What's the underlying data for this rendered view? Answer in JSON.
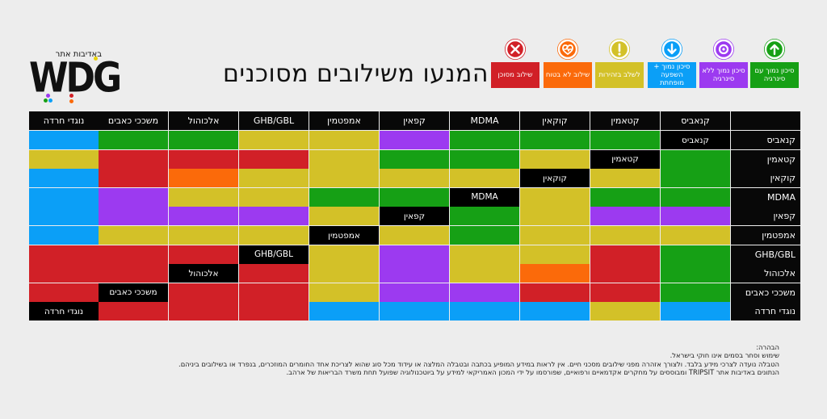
{
  "logo": {
    "subtitle": "באדיבות אתר",
    "wordmark": "WDG"
  },
  "title": "המנעו משילובים מסוכנים",
  "legend": [
    {
      "label": "שילוב מסוכן",
      "color": "#d12027",
      "icon": "x-circle-icon"
    },
    {
      "label": "שילוב לא בטוח",
      "color": "#fb6a0a",
      "icon": "heart-pulse-icon"
    },
    {
      "label": "לשלב בזהירות",
      "color": "#d3c128",
      "icon": "exclamation-icon"
    },
    {
      "label": "סיכון נמוך + השפעה מופחתת",
      "color": "#0b9ff7",
      "icon": "down-arrow-icon"
    },
    {
      "label": "סיכון נמוך ללא סינרגיה",
      "color": "#9c3af0",
      "icon": "target-icon"
    },
    {
      "label": "סיכון נמוך עם סינרגיה",
      "color": "#16a015",
      "icon": "up-arrow-icon"
    }
  ],
  "colors": {
    "G": "#16a015",
    "P": "#9c3af0",
    "B": "#0b9ff7",
    "Y": "#d3c128",
    "O": "#fb6a0a",
    "R": "#d12027"
  },
  "substances": [
    "קנאביס",
    "קטאמין",
    "קוקאין",
    "MDMA",
    "קפאין",
    "אמפטמין",
    "GHB/GBL",
    "אלכוהול",
    "משככי כאבים",
    "נוגדי חרדה"
  ],
  "matrix": [
    [
      "-",
      "G",
      "G",
      "G",
      "P",
      "Y",
      "Y",
      "G",
      "G",
      "B"
    ],
    [
      "G",
      "-",
      "Y",
      "G",
      "G",
      "Y",
      "R",
      "R",
      "R",
      "Y"
    ],
    [
      "G",
      "Y",
      "-",
      "Y",
      "Y",
      "Y",
      "Y",
      "O",
      "R",
      "B"
    ],
    [
      "G",
      "G",
      "Y",
      "-",
      "G",
      "G",
      "Y",
      "Y",
      "P",
      "B"
    ],
    [
      "P",
      "P",
      "Y",
      "G",
      "-",
      "Y",
      "P",
      "P",
      "P",
      "B"
    ],
    [
      "Y",
      "Y",
      "Y",
      "G",
      "Y",
      "-",
      "Y",
      "Y",
      "Y",
      "B"
    ],
    [
      "G",
      "R",
      "Y",
      "Y",
      "P",
      "Y",
      "-",
      "R",
      "R",
      "R"
    ],
    [
      "G",
      "R",
      "O",
      "Y",
      "P",
      "Y",
      "R",
      "-",
      "R",
      "R"
    ],
    [
      "G",
      "R",
      "R",
      "P",
      "P",
      "Y",
      "R",
      "R",
      "-",
      "R"
    ],
    [
      "B",
      "Y",
      "B",
      "B",
      "B",
      "B",
      "R",
      "R",
      "R",
      "-"
    ]
  ],
  "disclaimer": {
    "heading": "הבהרה:",
    "lines": [
      "שימוש וסחר בסמים אינו חוקי בישראל.",
      "הטבלה נועדה לצרכי מידע בלבד. ולצורך אזהרה מפני שילובים מסכני חיים. אין לראות במידע המופיע בכתבה ובטבלה המלצה או עידוד מכל סוג שהוא לצריכת אחד החומרים המוזכרים, בנפרד או בשילובים ביניהם.",
      "הנתונים באדיבות אתר TRIPSIT ומבוססים על מחקרים אקדמאיים ורפואיים, שפורסמו על ידי המכון האמריקאי למידע על ביוטכנולוגיה שפועל תחת משרד הבריאות של ארהב."
    ]
  }
}
